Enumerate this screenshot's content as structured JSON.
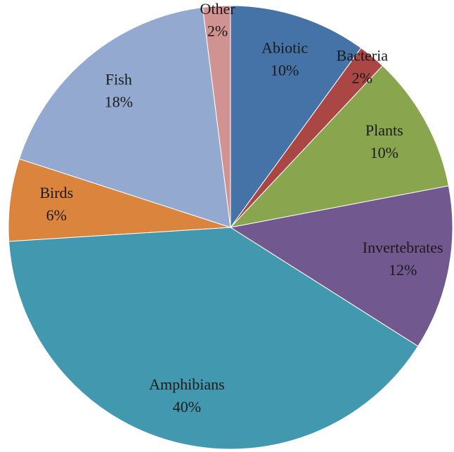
{
  "chart_data": {
    "type": "pie",
    "categories": [
      "Abiotic",
      "Bacteria",
      "Plants",
      "Invertebrates",
      "Amphibians",
      "Birds",
      "Fish",
      "Other"
    ],
    "values": [
      10,
      2,
      10,
      12,
      40,
      6,
      18,
      2
    ],
    "value_labels": [
      "10%",
      "2%",
      "10%",
      "12%",
      "40%",
      "6%",
      "18%",
      "2%"
    ],
    "colors": [
      "#4572a7",
      "#aa4643",
      "#89a54e",
      "#71588f",
      "#4198af",
      "#db843d",
      "#93a9cf",
      "#d19392"
    ]
  }
}
